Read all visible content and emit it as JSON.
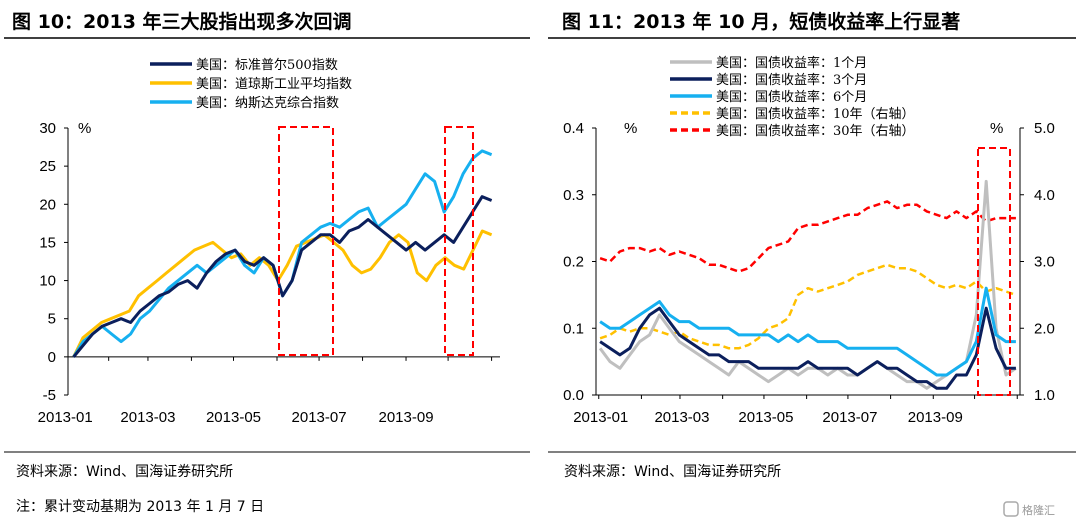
{
  "footer": {
    "source_left": "资料来源：Wind、国海证券研究所",
    "source_right": "资料来源：Wind、国海证券研究所",
    "note": "注：累计变动基期为 2013 年 1 月 7 日",
    "logo": "格隆汇"
  },
  "chart_data": [
    {
      "type": "line",
      "title": "图 10：2013 年三大股指出现多次回调",
      "ylabel": "%",
      "ylim": [
        -5,
        30
      ],
      "yticks": [
        "30",
        "25",
        "20",
        "15",
        "10",
        "5",
        "0",
        "-5"
      ],
      "ytick_values": [
        30,
        25,
        20,
        15,
        10,
        5,
        0,
        -5
      ],
      "xticks": [
        "2013-01",
        "2013-03",
        "2013-05",
        "2013-07",
        "2013-09"
      ],
      "x_start": "2013-01-07",
      "x_end": "2013-11-01",
      "legend_position": "top-center",
      "annotations": [
        "red dashed box: 2013-06 pullback",
        "red dashed box: 2013-10 pullback"
      ],
      "series": [
        {
          "name": "美国：标准普尔500指数",
          "color": "#0b1f5c",
          "dash": false,
          "values": [
            0,
            1.5,
            3,
            4,
            4.5,
            5,
            4.5,
            6,
            7,
            8,
            8.5,
            9.5,
            10,
            9,
            11,
            12.5,
            13.5,
            14,
            12.5,
            12,
            13,
            12,
            8,
            10,
            14,
            15,
            16,
            16,
            15,
            16.5,
            17,
            18,
            17,
            16,
            15,
            14,
            15,
            14,
            15,
            16,
            15,
            17,
            19,
            21,
            20.5
          ]
        },
        {
          "name": "美国：道琼斯工业平均指数",
          "color": "#ffc000",
          "dash": false,
          "values": [
            0,
            2.5,
            3.5,
            4.5,
            5,
            5.5,
            6,
            8,
            9,
            10,
            11,
            12,
            13,
            14,
            14.5,
            15,
            14,
            13,
            13.5,
            12,
            13,
            12,
            10,
            12,
            14.5,
            15,
            15.5,
            16,
            15,
            14,
            12,
            11,
            11.5,
            13,
            15,
            16,
            15,
            11,
            10,
            12,
            13,
            12,
            11.5,
            14,
            16.5,
            16
          ]
        },
        {
          "name": "美国：纳斯达克综合指数",
          "color": "#16b0f0",
          "dash": false,
          "values": [
            0,
            2,
            3,
            4,
            3,
            2,
            3,
            5,
            6,
            7.5,
            9,
            10,
            11,
            12,
            11,
            12,
            13,
            14,
            12,
            11,
            13,
            12,
            8,
            10,
            15,
            16,
            17,
            17.5,
            17,
            18,
            19,
            19.5,
            17,
            18,
            19,
            20,
            22,
            24,
            23,
            19,
            21,
            24,
            26,
            27,
            26.5
          ]
        }
      ]
    },
    {
      "type": "line",
      "title": "图 11：2013 年 10 月，短债收益率上行显著",
      "ylabel": "%",
      "ylabel_right": "%",
      "ylim": [
        0,
        0.4
      ],
      "ylim_right": [
        1.0,
        5.0
      ],
      "yticks": [
        "0.4",
        "0.3",
        "0.2",
        "0.1",
        "0.0"
      ],
      "ytick_values": [
        0.4,
        0.3,
        0.2,
        0.1,
        0.0
      ],
      "yticks_right": [
        "5.0",
        "4.0",
        "3.0",
        "2.0",
        "1.0"
      ],
      "ytick_values_right": [
        5,
        4,
        3,
        2,
        1
      ],
      "xticks": [
        "2013-01",
        "2013-03",
        "2013-05",
        "2013-07",
        "2013-09"
      ],
      "x_start": "2013-01-02",
      "x_end": "2013-10-31",
      "legend_position": "top-center",
      "annotations": [
        "red dashed box: 2013-10 short-term yield spike"
      ],
      "series": [
        {
          "name": "美国：国债收益率：1个月",
          "color": "#bfbfbf",
          "dash": false,
          "axis": "left",
          "values": [
            0.07,
            0.05,
            0.04,
            0.06,
            0.08,
            0.09,
            0.12,
            0.1,
            0.08,
            0.07,
            0.06,
            0.05,
            0.04,
            0.03,
            0.05,
            0.04,
            0.03,
            0.02,
            0.03,
            0.04,
            0.03,
            0.04,
            0.04,
            0.03,
            0.04,
            0.03,
            0.03,
            0.04,
            0.05,
            0.04,
            0.03,
            0.02,
            0.02,
            0.01,
            0.02,
            0.03,
            0.04,
            0.05,
            0.12,
            0.32,
            0.1,
            0.03,
            0.04
          ]
        },
        {
          "name": "美国：国债收益率：3个月",
          "color": "#0b1f5c",
          "dash": false,
          "axis": "left",
          "values": [
            0.08,
            0.07,
            0.06,
            0.07,
            0.1,
            0.12,
            0.13,
            0.11,
            0.09,
            0.08,
            0.07,
            0.06,
            0.06,
            0.05,
            0.05,
            0.05,
            0.04,
            0.04,
            0.04,
            0.04,
            0.04,
            0.05,
            0.04,
            0.04,
            0.04,
            0.04,
            0.03,
            0.04,
            0.05,
            0.04,
            0.04,
            0.03,
            0.02,
            0.02,
            0.01,
            0.01,
            0.03,
            0.03,
            0.06,
            0.13,
            0.07,
            0.04,
            0.04
          ]
        },
        {
          "name": "美国：国债收益率：6个月",
          "color": "#16b0f0",
          "dash": false,
          "axis": "left",
          "values": [
            0.11,
            0.1,
            0.1,
            0.11,
            0.12,
            0.13,
            0.14,
            0.12,
            0.11,
            0.11,
            0.1,
            0.1,
            0.1,
            0.1,
            0.09,
            0.09,
            0.09,
            0.09,
            0.08,
            0.09,
            0.08,
            0.09,
            0.08,
            0.08,
            0.08,
            0.07,
            0.07,
            0.07,
            0.07,
            0.07,
            0.07,
            0.06,
            0.05,
            0.04,
            0.03,
            0.03,
            0.04,
            0.05,
            0.08,
            0.16,
            0.09,
            0.08,
            0.08
          ]
        },
        {
          "name": "美国：国债收益率：10年（右轴）",
          "color": "#ffc000",
          "dash": true,
          "axis": "right",
          "values": [
            1.85,
            1.9,
            2.0,
            1.95,
            2.0,
            2.0,
            1.95,
            1.9,
            1.95,
            1.85,
            1.8,
            1.75,
            1.75,
            1.7,
            1.7,
            1.75,
            1.85,
            2.0,
            2.05,
            2.15,
            2.5,
            2.6,
            2.55,
            2.6,
            2.65,
            2.7,
            2.8,
            2.85,
            2.9,
            2.95,
            2.9,
            2.9,
            2.85,
            2.75,
            2.65,
            2.6,
            2.65,
            2.6,
            2.7,
            2.55,
            2.6,
            2.55,
            2.5
          ]
        },
        {
          "name": "美国：国债收益率：30年（右轴）",
          "color": "#ff0000",
          "dash": true,
          "axis": "right",
          "values": [
            3.05,
            3.0,
            3.15,
            3.2,
            3.2,
            3.15,
            3.2,
            3.1,
            3.15,
            3.1,
            3.05,
            2.95,
            2.95,
            2.9,
            2.85,
            2.9,
            3.05,
            3.2,
            3.25,
            3.3,
            3.5,
            3.55,
            3.55,
            3.6,
            3.65,
            3.7,
            3.7,
            3.8,
            3.85,
            3.9,
            3.8,
            3.85,
            3.85,
            3.75,
            3.7,
            3.65,
            3.75,
            3.65,
            3.75,
            3.6,
            3.65,
            3.65,
            3.65
          ]
        }
      ]
    }
  ]
}
